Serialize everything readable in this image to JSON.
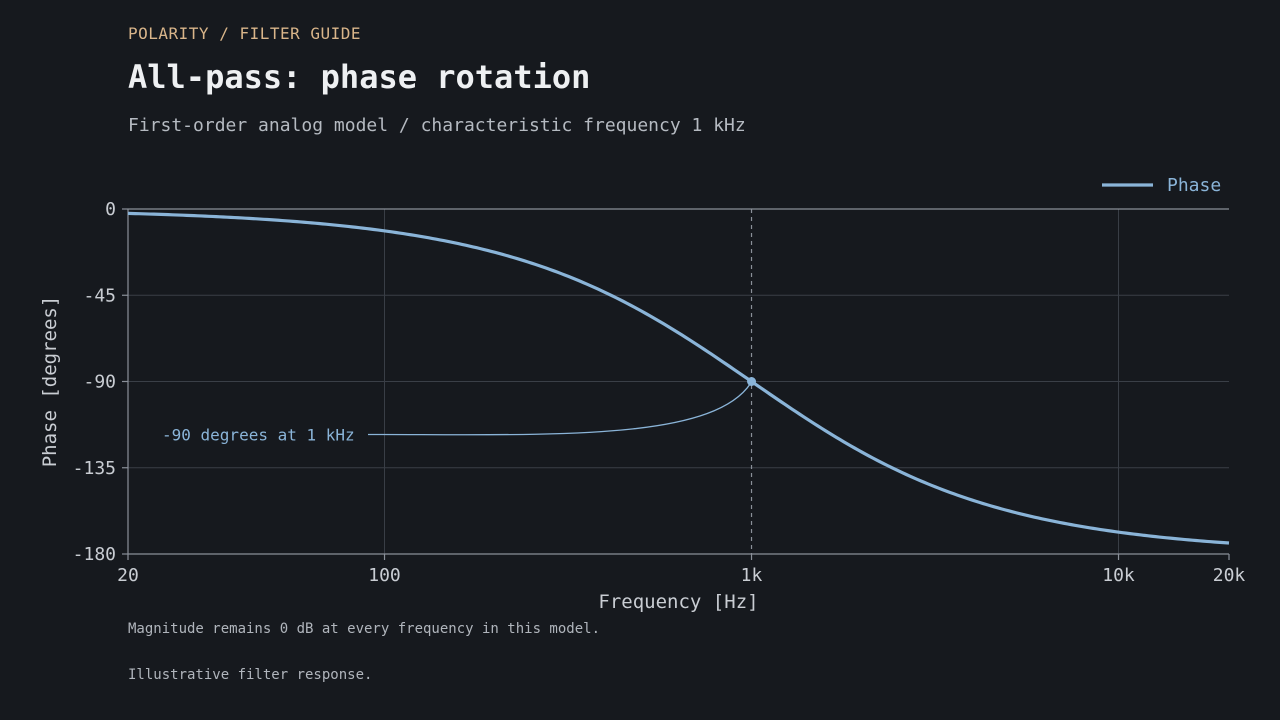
{
  "header": {
    "eyebrow": "POLARITY / FILTER GUIDE",
    "title": "All-pass: phase rotation",
    "subtitle": "First-order analog model / characteristic frequency 1 kHz"
  },
  "footnotes": {
    "magnitude_note": "Magnitude remains 0 dB at every frequency in this model.",
    "disclaimer": "Illustrative filter response."
  },
  "colors": {
    "background": "#16191e",
    "series": "#8ab4d8",
    "eyebrow": "#d9b58a",
    "grid": "#3a3f47",
    "axis": "#8a9099"
  },
  "chart_data": {
    "type": "line",
    "title": "",
    "xlabel": "Frequency [Hz]",
    "ylabel": "Phase [degrees]",
    "xscale": "log",
    "xlim": [
      20,
      20000
    ],
    "ylim": [
      -180,
      0
    ],
    "xticks": [
      20,
      100,
      1000,
      10000,
      20000
    ],
    "xtick_labels": [
      "20",
      "100",
      "1k",
      "10k",
      "20k"
    ],
    "yticks": [
      0,
      -45,
      -90,
      -135,
      -180
    ],
    "ytick_labels": [
      "0",
      "-45",
      "-90",
      "-135",
      "-180"
    ],
    "grid": true,
    "legend_position": "top-right",
    "series": [
      {
        "name": "Phase",
        "x": [
          20,
          30,
          50,
          70,
          100,
          150,
          200,
          300,
          500,
          700,
          1000,
          1500,
          2000,
          3000,
          5000,
          7000,
          10000,
          15000,
          20000
        ],
        "y": [
          -2.3,
          -3.4,
          -5.7,
          -8.0,
          -11.4,
          -17.1,
          -22.6,
          -33.4,
          -53.1,
          -69.6,
          -90.0,
          -112.6,
          -126.9,
          -143.1,
          -157.4,
          -163.7,
          -168.6,
          -172.4,
          -174.3
        ]
      }
    ],
    "annotations": [
      {
        "text": "-90 degrees at 1 kHz",
        "x": 1000,
        "y": -90
      }
    ],
    "reference_line": {
      "x": 1000
    }
  }
}
